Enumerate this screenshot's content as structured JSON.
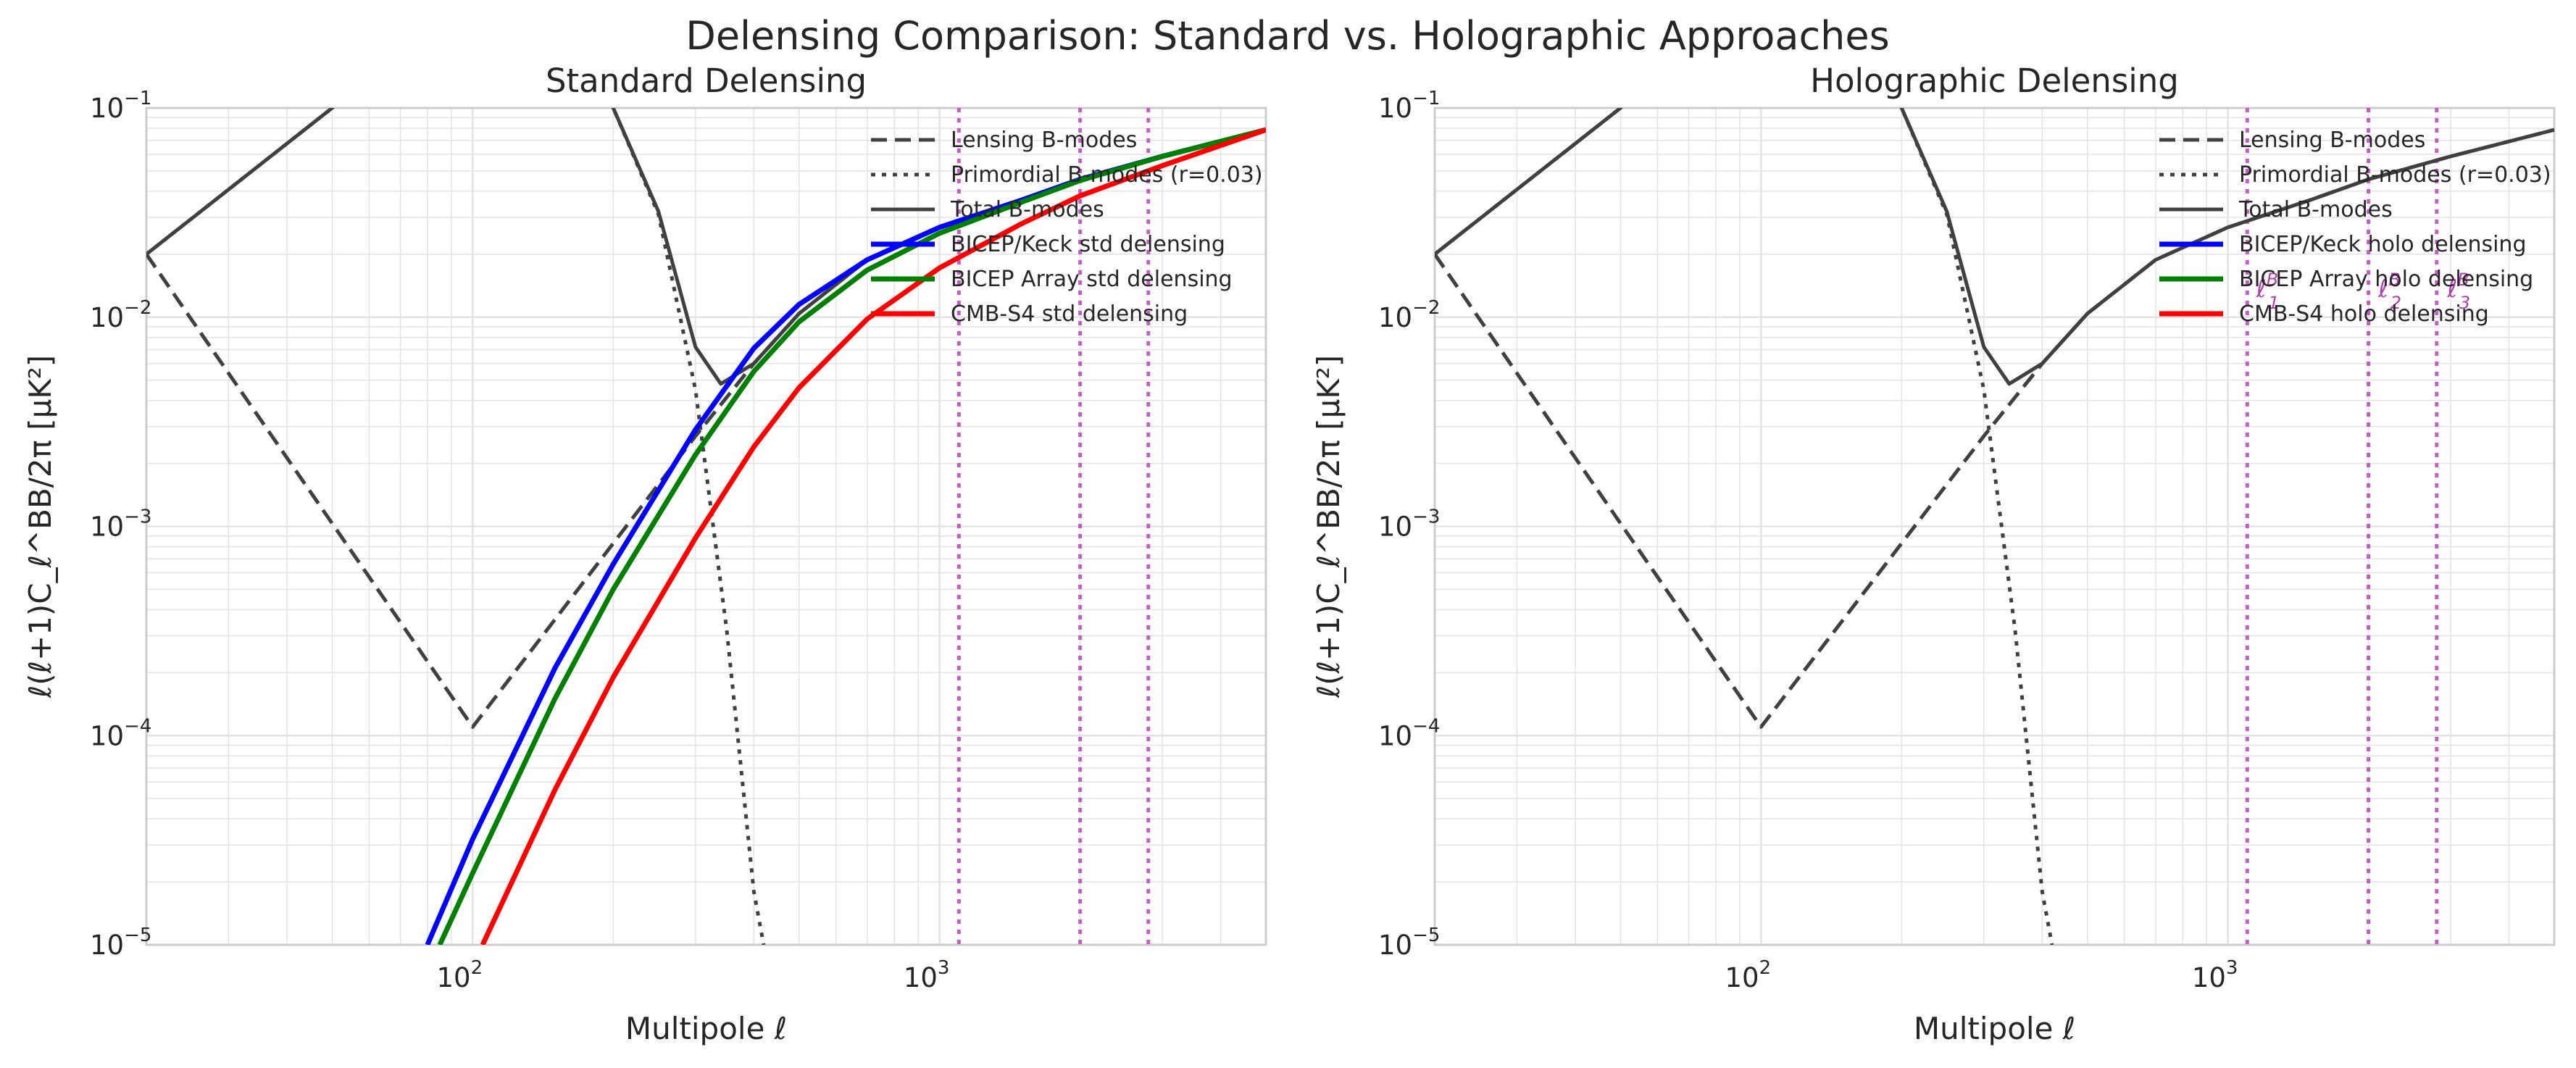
{
  "figure": {
    "suptitle": "Delensing Comparison: Standard vs. Holographic Approaches"
  },
  "chart_data": [
    {
      "type": "line",
      "title": "Standard Delensing",
      "xlabel": "Multipole ℓ",
      "ylabel": "ℓ(ℓ+1)C_ℓ^BB/2π [μK²]",
      "xscale": "log",
      "yscale": "log",
      "xlim": [
        20,
        5000
      ],
      "ylim": [
        1e-05,
        0.1
      ],
      "x_ticks": [
        {
          "base": "10",
          "exp": "2"
        },
        {
          "base": "10",
          "exp": "3"
        }
      ],
      "y_ticks": [
        {
          "base": "10",
          "exp": "−5"
        },
        {
          "base": "10",
          "exp": "−4"
        },
        {
          "base": "10",
          "exp": "−3"
        },
        {
          "base": "10",
          "exp": "−2"
        },
        {
          "base": "10",
          "exp": "−1"
        }
      ],
      "grid": true,
      "legend_position": "top-right",
      "vlines": [
        1100,
        2000,
        2800
      ],
      "vline_color": "#bf40bf",
      "annotations": [],
      "series": [
        {
          "name": "Lensing B-modes",
          "color": "#404040",
          "style": "dashed",
          "x": [
            20,
            100,
            200,
            300,
            400,
            500,
            700,
            1000,
            1500,
            2000,
            3000,
            5000
          ],
          "y": [
            0.02,
            0.00011,
            0.00083,
            0.0027,
            0.006,
            0.0104,
            0.0188,
            0.0269,
            0.0363,
            0.0456,
            0.0587,
            0.0786
          ]
        },
        {
          "name": "Primordial B-modes (r=0.03)",
          "color": "#404040",
          "style": "dotted",
          "x": [
            20,
            50,
            100,
            150,
            200,
            250,
            300,
            350,
            400,
            420
          ],
          "y": [
            0.02,
            0.1,
            0.5,
            0.28,
            0.1,
            0.031,
            0.0045,
            0.00032,
            1.8e-05,
            1e-05
          ]
        },
        {
          "name": "Total B-modes",
          "color": "#404040",
          "style": "solid",
          "x": [
            20,
            50,
            100,
            150,
            200,
            250,
            300,
            340,
            400,
            500,
            700,
            1000,
            1500,
            2000,
            3000,
            5000
          ],
          "y": [
            0.02,
            0.1,
            0.5,
            0.28,
            0.1,
            0.032,
            0.0072,
            0.0048,
            0.006,
            0.0104,
            0.0188,
            0.0269,
            0.0363,
            0.0456,
            0.0587,
            0.0786
          ]
        },
        {
          "name": "BICEP/Keck std delensing",
          "color": "#0000ff",
          "style": "solid",
          "x": [
            80,
            100,
            150,
            200,
            300,
            400,
            500,
            700,
            1000,
            1500,
            2000,
            3000,
            5000
          ],
          "y": [
            1e-05,
            3.2e-05,
            0.00021,
            0.00066,
            0.0029,
            0.0071,
            0.0115,
            0.0188,
            0.0269,
            0.0363,
            0.0456,
            0.0587,
            0.0786
          ]
        },
        {
          "name": "BICEP Array std delensing",
          "color": "#008000",
          "style": "solid",
          "x": [
            85,
            100,
            150,
            200,
            300,
            400,
            500,
            700,
            1000,
            1500,
            2000,
            3000,
            5000
          ],
          "y": [
            1e-05,
            2.2e-05,
            0.00015,
            0.0005,
            0.0022,
            0.0055,
            0.0095,
            0.0168,
            0.0252,
            0.0355,
            0.045,
            0.0587,
            0.0786
          ]
        },
        {
          "name": "CMB-S4 std delensing",
          "color": "#ff0000",
          "style": "solid",
          "x": [
            105,
            150,
            200,
            300,
            400,
            500,
            700,
            1000,
            1500,
            2000,
            3000,
            5000
          ],
          "y": [
            1e-05,
            5.5e-05,
            0.00019,
            0.00088,
            0.0024,
            0.0046,
            0.0098,
            0.0172,
            0.028,
            0.038,
            0.053,
            0.0786
          ]
        }
      ]
    },
    {
      "type": "line",
      "title": "Holographic Delensing",
      "xlabel": "Multipole ℓ",
      "ylabel": "ℓ(ℓ+1)C_ℓ^BB/2π [μK²]",
      "xscale": "log",
      "yscale": "log",
      "xlim": [
        20,
        5000
      ],
      "ylim": [
        1e-05,
        0.1
      ],
      "x_ticks": [
        {
          "base": "10",
          "exp": "2"
        },
        {
          "base": "10",
          "exp": "3"
        }
      ],
      "y_ticks": [
        {
          "base": "10",
          "exp": "−5"
        },
        {
          "base": "10",
          "exp": "−4"
        },
        {
          "base": "10",
          "exp": "−3"
        },
        {
          "base": "10",
          "exp": "−2"
        },
        {
          "base": "10",
          "exp": "−1"
        }
      ],
      "grid": true,
      "legend_position": "top-right",
      "vlines": [
        1100,
        2000,
        2800
      ],
      "vline_color": "#bf40bf",
      "annotations": [
        {
          "text_main": "ℓ",
          "text_sub": "1",
          "text_sup": "B",
          "x": 1150,
          "y": 0.0125
        },
        {
          "text_main": "ℓ",
          "text_sub": "2",
          "text_sup": "B",
          "x": 2100,
          "y": 0.0125
        },
        {
          "text_main": "ℓ",
          "text_sub": "3",
          "text_sup": "B",
          "x": 2950,
          "y": 0.0125
        }
      ],
      "series": [
        {
          "name": "Lensing B-modes",
          "color": "#404040",
          "style": "dashed",
          "x": [
            20,
            100,
            200,
            300,
            400,
            500,
            700,
            1000,
            1500,
            2000,
            3000,
            5000
          ],
          "y": [
            0.02,
            0.00011,
            0.00083,
            0.0027,
            0.006,
            0.0104,
            0.0188,
            0.0269,
            0.0363,
            0.0456,
            0.0587,
            0.0786
          ]
        },
        {
          "name": "Primordial B-modes (r=0.03)",
          "color": "#404040",
          "style": "dotted",
          "x": [
            20,
            50,
            100,
            150,
            200,
            250,
            300,
            350,
            400,
            420
          ],
          "y": [
            0.02,
            0.1,
            0.5,
            0.28,
            0.1,
            0.031,
            0.0045,
            0.00032,
            1.8e-05,
            1e-05
          ]
        },
        {
          "name": "Total B-modes",
          "color": "#404040",
          "style": "solid",
          "x": [
            20,
            50,
            100,
            150,
            200,
            250,
            300,
            340,
            400,
            500,
            700,
            1000,
            1500,
            2000,
            3000,
            5000
          ],
          "y": [
            0.02,
            0.1,
            0.5,
            0.28,
            0.1,
            0.032,
            0.0072,
            0.0048,
            0.006,
            0.0104,
            0.0188,
            0.0269,
            0.0363,
            0.0456,
            0.0587,
            0.0786
          ]
        },
        {
          "name": "BICEP/Keck holo delensing",
          "color": "#0000ff",
          "style": "solid",
          "x": [],
          "y": []
        },
        {
          "name": "BICEP Array holo delensing",
          "color": "#008000",
          "style": "solid",
          "x": [],
          "y": []
        },
        {
          "name": "CMB-S4 holo delensing",
          "color": "#ff0000",
          "style": "solid",
          "x": [],
          "y": []
        }
      ]
    }
  ]
}
